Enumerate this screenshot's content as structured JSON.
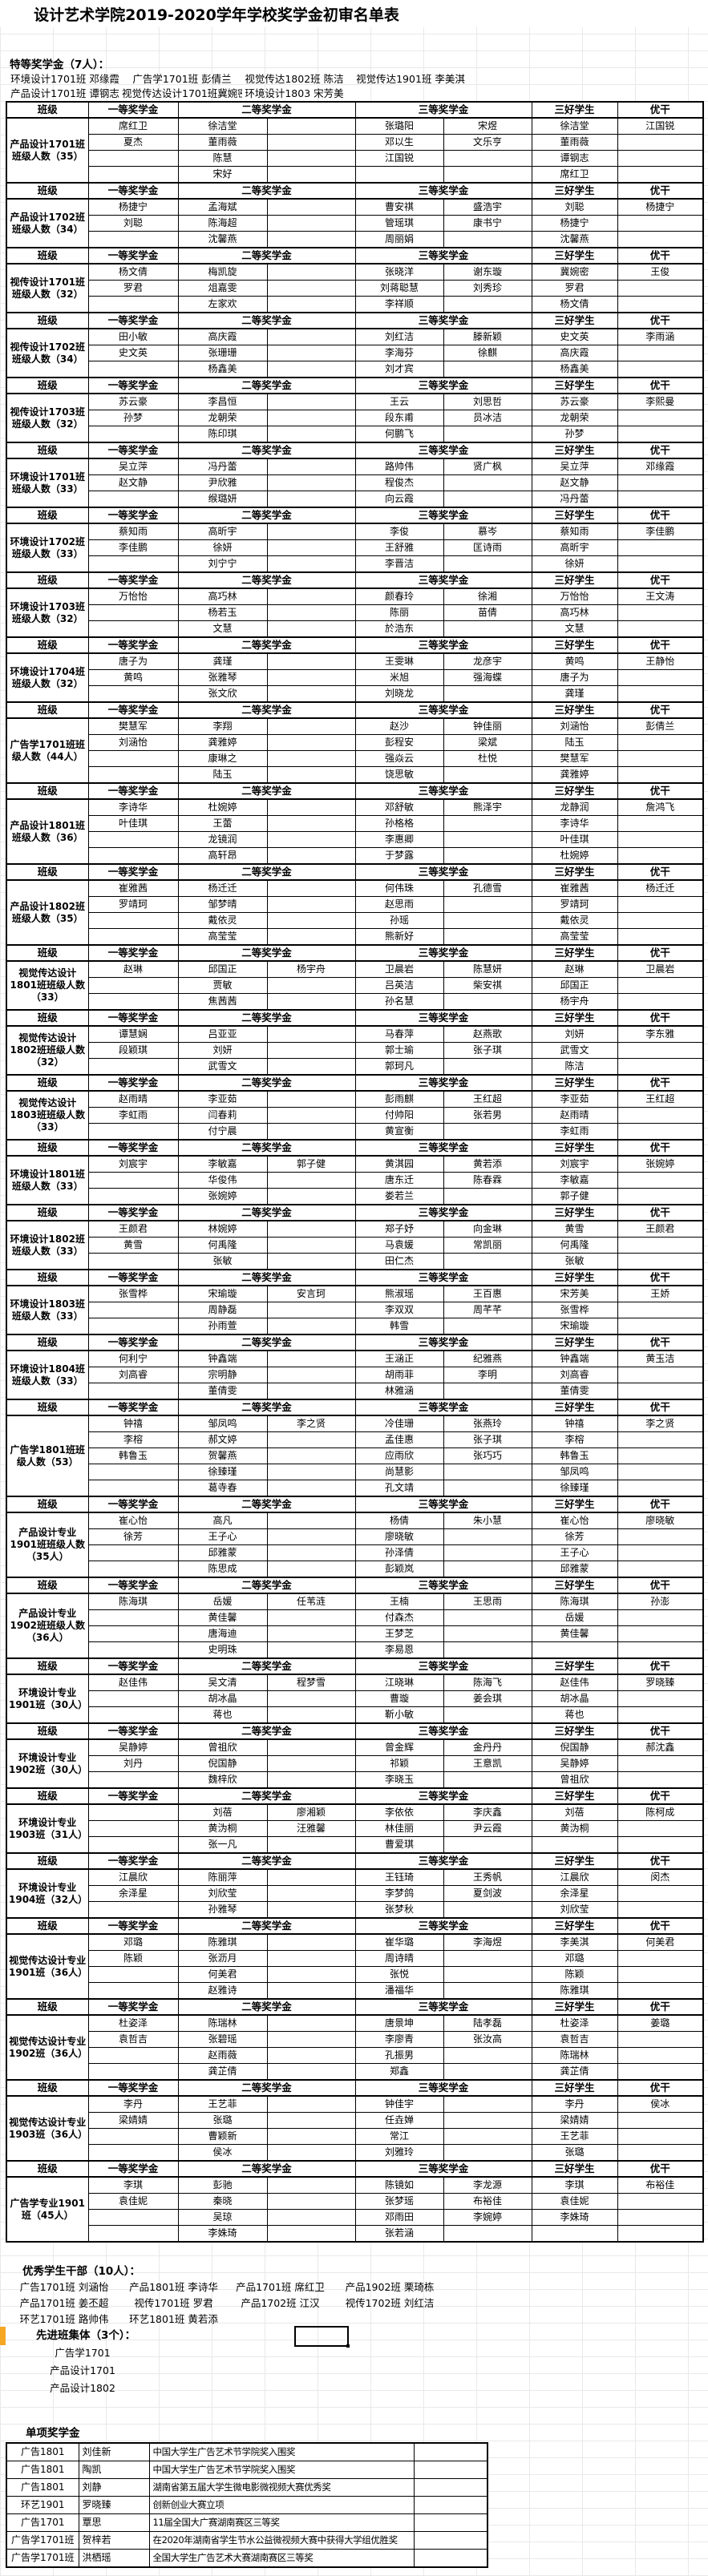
{
  "title": "设计艺术学院2019-2020学年学校奖学金初审名单表",
  "special_award": {
    "heading": "特等奖学金（7人）：",
    "rows": [
      [
        "环境设计1701班 邓缘霞",
        "广告学1701班 彭倩兰",
        "视觉传达1802班 陈洁",
        "视觉传达1901班 李美淇"
      ],
      [
        "产品设计1701班 谭钢志",
        "视觉传达设计1701班冀婉密",
        "环境设计1803  宋芳美",
        ""
      ]
    ]
  },
  "table_header": {
    "class_label": "班级",
    "first": "一等奖学金",
    "second": "二等奖学金",
    "third": "三等奖学金",
    "merit": "三好学生",
    "cadre": "优干"
  },
  "blocks": [
    {
      "label": "产品设计1701班班级人数（35）",
      "rows": [
        [
          "席红卫",
          "徐洁堂",
          "",
          "张璐阳",
          "宋煜",
          "徐洁堂",
          "江国锐"
        ],
        [
          "夏杰",
          "董雨薇",
          "",
          "邓以生",
          "文乐亨",
          "董雨薇",
          ""
        ],
        [
          "",
          "陈慧",
          "",
          "江国锐",
          "",
          "谭钢志",
          ""
        ],
        [
          "",
          "宋好",
          "",
          "",
          "",
          "席红卫",
          ""
        ]
      ]
    },
    {
      "label": "产品设计1702班班级人数（34）",
      "rows": [
        [
          "杨捷宁",
          "孟海斌",
          "",
          "曹安祺",
          "盛浩宇",
          "刘聪",
          "杨捷宁"
        ],
        [
          "刘聪",
          "陈海超",
          "",
          "管瑶琪",
          "康书宁",
          "杨捷宁",
          ""
        ],
        [
          "",
          "沈馨燕",
          "",
          "周丽娟",
          "",
          "沈馨燕",
          ""
        ]
      ]
    },
    {
      "label": "视传设计1701班班级人数（32）",
      "rows": [
        [
          "杨文倩",
          "梅凯旋",
          "",
          "张晓洋",
          "谢东璇",
          "冀婉密",
          "王俊"
        ],
        [
          "罗君",
          "俎嘉雯",
          "",
          "刘蒋聪慧",
          "刘秀珍",
          "罗君",
          ""
        ],
        [
          "",
          "左家欢",
          "",
          "李祥顺",
          "",
          "杨文倩",
          ""
        ]
      ]
    },
    {
      "label": "视传设计1702班班级人数（34）",
      "rows": [
        [
          "田小敏",
          "高庆霞",
          "",
          "刘红洁",
          "滕新颖",
          "史文英",
          "李雨涵"
        ],
        [
          "史文英",
          "张珊珊",
          "",
          "李海芬",
          "徐麒",
          "高庆霞",
          ""
        ],
        [
          "",
          "杨鑫美",
          "",
          "刘才宾",
          "",
          "杨鑫美",
          ""
        ]
      ]
    },
    {
      "label": "视传设计1703班班级人数（32）",
      "rows": [
        [
          "苏云豪",
          "李昌恒",
          "",
          "王云",
          "刘思哲",
          "苏云豪",
          "李熙曼"
        ],
        [
          "孙梦",
          "龙朝荣",
          "",
          "段东甫",
          "员冰洁",
          "龙朝荣",
          ""
        ],
        [
          "",
          "陈印琪",
          "",
          "何鹏飞",
          "",
          "孙梦",
          ""
        ]
      ]
    },
    {
      "label": "环境设计1701班班级人数（33）",
      "rows": [
        [
          "吴立萍",
          "冯丹蕾",
          "",
          "路帅伟",
          "贤广枫",
          "吴立萍",
          "邓缘霞"
        ],
        [
          "赵文静",
          "尹欣雅",
          "",
          "程俊杰",
          "",
          "赵文静",
          ""
        ],
        [
          "",
          "缑璐妍",
          "",
          "向云霞",
          "",
          "冯丹蕾",
          ""
        ]
      ]
    },
    {
      "label": "环境设计1702班班级人数（33）",
      "rows": [
        [
          "蔡知雨",
          "高昕宇",
          "",
          "李俊",
          "慕岑",
          "蔡知雨",
          "李佳鹏"
        ],
        [
          "李佳鹏",
          "徐妍",
          "",
          "王舒雅",
          "匡诗雨",
          "高昕宇",
          ""
        ],
        [
          "",
          "刘宁宁",
          "",
          "李晋洁",
          "",
          "徐妍",
          ""
        ]
      ]
    },
    {
      "label": "环境设计1703班班级人数（32）",
      "rows": [
        [
          "万怡怡",
          "高巧林",
          "",
          "颜春玲",
          "徐湘",
          "万怡怡",
          "王文涛"
        ],
        [
          "",
          "杨若玉",
          "",
          "陈丽",
          "苗倩",
          "高巧林",
          ""
        ],
        [
          "",
          "文慧",
          "",
          "於浩东",
          "",
          "文慧",
          ""
        ]
      ]
    },
    {
      "label": "环境设计1704班班级人数（32）",
      "rows": [
        [
          "唐子为",
          "龚瑾",
          "",
          "王雯琳",
          "龙彦宇",
          "黄鸣",
          "王静怡"
        ],
        [
          "黄鸣",
          "张雅琴",
          "",
          "米旭",
          "强海蝶",
          "唐子为",
          ""
        ],
        [
          "",
          "张文欣",
          "",
          "刘晓龙",
          "",
          "龚瑾",
          ""
        ]
      ]
    },
    {
      "label": "广告学1701班班级人数（44人）",
      "rows": [
        [
          "樊慧军",
          "李翔",
          "",
          "赵沙",
          "钟佳丽",
          "刘涵怡",
          "彭倩兰"
        ],
        [
          "刘涵怡",
          "龚雅婷",
          "",
          "彭程安",
          "梁斌",
          "陆玉",
          ""
        ],
        [
          "",
          "康琳之",
          "",
          "强焱云",
          "杜悦",
          "樊慧军",
          ""
        ],
        [
          "",
          "陆玉",
          "",
          "饶思敏",
          "",
          "龚雅婷",
          ""
        ]
      ]
    },
    {
      "label": "产品设计1801班班级人数（36）",
      "rows": [
        [
          "李诗华",
          "杜婉婷",
          "",
          "邓舒敏",
          "熊泽宇",
          "龙静润",
          "詹鸿飞"
        ],
        [
          "叶佳琪",
          "王蕾",
          "",
          "孙格格",
          "",
          "李诗华",
          ""
        ],
        [
          "",
          "龙镜润",
          "",
          "李惠卿",
          "",
          "叶佳琪",
          ""
        ],
        [
          "",
          "高轩昂",
          "",
          "于梦露",
          "",
          "杜婉婷",
          ""
        ]
      ]
    },
    {
      "label": "产品设计1802班班级人数（35）",
      "rows": [
        [
          "崔雅茜",
          "杨迁迁",
          "",
          "何伟珠",
          "孔德雪",
          "崔雅茜",
          "杨迁迁"
        ],
        [
          "罗靖珂",
          "邹梦晴",
          "",
          "赵思雨",
          "",
          "罗靖珂",
          ""
        ],
        [
          "",
          "戴依灵",
          "",
          "孙瑶",
          "",
          "戴依灵",
          ""
        ],
        [
          "",
          "高莹莹",
          "",
          "熊新好",
          "",
          "高莹莹",
          ""
        ]
      ]
    },
    {
      "label": "视觉传达设计1801班班级人数（33）",
      "rows": [
        [
          "赵琳",
          "邱国正",
          "杨宇舟",
          "卫晨岩",
          "陈慧妍",
          "赵琳",
          "卫晨岩"
        ],
        [
          "",
          "贾敏",
          "",
          "吕英洁",
          "柴安祺",
          "邱国正",
          ""
        ],
        [
          "",
          "焦茜茜",
          "",
          "孙名慧",
          "",
          "杨宇舟",
          ""
        ]
      ]
    },
    {
      "label": "视觉传达设计1802班班级人数（32）",
      "rows": [
        [
          "谭慧娴",
          "吕亚亚",
          "",
          "马春萍",
          "赵燕歌",
          "刘妍",
          "李东雅"
        ],
        [
          "段颖琪",
          "刘妍",
          "",
          "郭士瑜",
          "张子琪",
          "武雪文",
          ""
        ],
        [
          "",
          "武雪文",
          "",
          "郭珂凡",
          "",
          "陈洁",
          ""
        ]
      ]
    },
    {
      "label": "视觉传达设计1803班班级人数（33）",
      "rows": [
        [
          "赵雨晴",
          "李亚茹",
          "",
          "彭雨麒",
          "王红超",
          "李亚茹",
          "王红超"
        ],
        [
          "李虹雨",
          "闫春莉",
          "",
          "付帅阳",
          "张若男",
          "赵雨晴",
          ""
        ],
        [
          "",
          "付宁晨",
          "",
          "黄宣衡",
          "",
          "李虹雨",
          ""
        ]
      ]
    },
    {
      "label": "环境设计1801班班级人数（33）",
      "rows": [
        [
          "刘宸宇",
          "李敏嘉",
          "郭子健",
          "黄淇园",
          "黄若添",
          "刘宸宇",
          "张婉婷"
        ],
        [
          "",
          "华俊伟",
          "",
          "唐东迁",
          "陈春霖",
          "李敏嘉",
          ""
        ],
        [
          "",
          "张婉婷",
          "",
          "娄若兰",
          "",
          "郭子健",
          ""
        ]
      ]
    },
    {
      "label": "环境设计1802班班级人数（33）",
      "rows": [
        [
          "王颜君",
          "林婉婷",
          "",
          "郑子妤",
          "向金琳",
          "黄雪",
          "王颜君"
        ],
        [
          "黄雪",
          "何禹隆",
          "",
          "马袁媛",
          "常凯丽",
          "何禹隆",
          ""
        ],
        [
          "",
          "张敏",
          "",
          "田仁杰",
          "",
          "张敏",
          ""
        ]
      ]
    },
    {
      "label": "环境设计1803班班级人数（33）",
      "rows": [
        [
          "张雪桦",
          "宋瑜璇",
          "安言珂",
          "熊淑瑶",
          "王百惠",
          "宋芳美",
          "王娇"
        ],
        [
          "",
          "周静磊",
          "",
          "李双双",
          "周芊芊",
          "张雪桦",
          ""
        ],
        [
          "",
          "孙雨萱",
          "",
          "韩雪",
          "",
          "宋瑜璇",
          ""
        ]
      ]
    },
    {
      "label": "环境设计1804班班级人数（33）",
      "rows": [
        [
          "何利宁",
          "钟鑫端",
          "",
          "王涵正",
          "纪雅燕",
          "钟鑫端",
          "黄玉洁"
        ],
        [
          "刘高睿",
          "宗明静",
          "",
          "胡雨菲",
          "李明",
          "刘高睿",
          ""
        ],
        [
          "",
          "董倩雯",
          "",
          "林雅涵",
          "",
          "董倩雯",
          ""
        ]
      ]
    },
    {
      "label": "广告学1801班班级人数（53）",
      "rows": [
        [
          "钟禧",
          "邹凤鸣",
          "李之贤",
          "冷佳珊",
          "张燕玲",
          "钟禧",
          "李之贤"
        ],
        [
          "李榕",
          "郝文婷",
          "",
          "孟佳惠",
          "张子琪",
          "李榕",
          ""
        ],
        [
          "韩鲁玉",
          "贺馨燕",
          "",
          "应雨欣",
          "张巧巧",
          "韩鲁玉",
          ""
        ],
        [
          "",
          "徐臻瑾",
          "",
          "尚慧影",
          "",
          "邹凤鸣",
          ""
        ],
        [
          "",
          "葛寺春",
          "",
          "孔文靖",
          "",
          "徐臻瑾",
          ""
        ]
      ]
    },
    {
      "label": "产品设计专业1901班班级人数（35人）",
      "rows": [
        [
          "崔心怡",
          "高凡",
          "",
          "杨倩",
          "朱小慧",
          "崔心怡",
          "廖晓敏"
        ],
        [
          "徐芳",
          "王子心",
          "",
          "廖晓敏",
          "",
          "徐芳",
          ""
        ],
        [
          "",
          "邱雅蒙",
          "",
          "孙泽倩",
          "",
          "王子心",
          ""
        ],
        [
          "",
          "陈思成",
          "",
          "彭颖岚",
          "",
          "邱雅蒙",
          ""
        ]
      ]
    },
    {
      "label": "产品设计专业1902班班级人数（36人）",
      "rows": [
        [
          "陈海琪",
          "岳媛",
          "任苇涟",
          "王楠",
          "王思雨",
          "陈海琪",
          "孙澎"
        ],
        [
          "",
          "黄佳馨",
          "",
          "付森杰",
          "",
          "岳媛",
          ""
        ],
        [
          "",
          "唐海迪",
          "",
          "王梦芝",
          "",
          "黄佳馨",
          ""
        ],
        [
          "",
          "史明珠",
          "",
          "李易恩",
          "",
          "",
          ""
        ]
      ]
    },
    {
      "label": "环境设计专业1901班（30人）",
      "rows": [
        [
          "赵佳伟",
          "吴文清",
          "程梦雪",
          "江晓琳",
          "陈海飞",
          "赵佳伟",
          "罗晓臻"
        ],
        [
          "",
          "胡冰晶",
          "",
          "曹璇",
          "姜会琪",
          "胡冰晶",
          ""
        ],
        [
          "",
          "蒋也",
          "",
          "靳小敏",
          "",
          "蒋也",
          ""
        ]
      ]
    },
    {
      "label": "环境设计专业1902班（30人）",
      "rows": [
        [
          "吴静婷",
          "曾祖欣",
          "",
          "曾金辉",
          "金丹丹",
          "倪国静",
          "郝沈鑫"
        ],
        [
          "刘丹",
          "倪国静",
          "",
          "祁颖",
          "王意凯",
          "吴静婷",
          ""
        ],
        [
          "",
          "魏梓欣",
          "",
          "李晓玉",
          "",
          "曾祖欣",
          ""
        ]
      ]
    },
    {
      "label": "环境设计专业1903班（31人）",
      "rows": [
        [
          "",
          "刘蓓",
          "廖湘颖",
          "李依依",
          "李庆鑫",
          "刘蓓",
          "陈柯成"
        ],
        [
          "",
          "黄沩桐",
          "汪雅馨",
          "林佳丽",
          "尹云霞",
          "黄沩桐",
          ""
        ],
        [
          "",
          "张一凡",
          "",
          "曹爱琪",
          "",
          "",
          ""
        ]
      ]
    },
    {
      "label": "环境设计专业1904班（32人）",
      "rows": [
        [
          "江晨欣",
          "陈丽萍",
          "",
          "王钰琦",
          "王秀帆",
          "江晨欣",
          "闵杰"
        ],
        [
          "余泽星",
          "刘欣莹",
          "",
          "李梦鸽",
          "夏剑波",
          "余泽星",
          ""
        ],
        [
          "",
          "孙雅琴",
          "",
          "张梦秋",
          "",
          "刘欣莹",
          ""
        ]
      ]
    },
    {
      "label": "视觉传达设计专业1901班（36人）",
      "rows": [
        [
          "邓璐",
          "陈雅琪",
          "",
          "崔华璐",
          "李海煜",
          "李美淇",
          "何美君"
        ],
        [
          "陈颖",
          "张沥月",
          "",
          "周诗晴",
          "",
          "邓璐",
          ""
        ],
        [
          "",
          "何美君",
          "",
          "张悦",
          "",
          "陈颖",
          ""
        ],
        [
          "",
          "赵雅诗",
          "",
          "潘福华",
          "",
          "陈雅琪",
          ""
        ]
      ]
    },
    {
      "label": "视觉传达设计专业1902班（36人）",
      "rows": [
        [
          "杜姿泽",
          "陈瑞林",
          "",
          "唐景坤",
          "陆孝磊",
          "杜姿泽",
          "姜璐"
        ],
        [
          "袁哲吉",
          "张碧瑶",
          "",
          "李廖青",
          "张汝高",
          "袁哲吉",
          ""
        ],
        [
          "",
          "赵雨薇",
          "",
          "孔振男",
          "",
          "陈瑞林",
          ""
        ],
        [
          "",
          "龚芷倩",
          "",
          "郑鑫",
          "",
          "龚芷倩",
          ""
        ]
      ]
    },
    {
      "label": "视觉传达设计专业1903班（36人）",
      "rows": [
        [
          "李丹",
          "王艺菲",
          "",
          "钟佳宇",
          "",
          "李丹",
          "侯冰"
        ],
        [
          "梁婧婧",
          "张璐",
          "",
          "任垚婵",
          "",
          "梁婧婧",
          ""
        ],
        [
          "",
          "曹颖新",
          "",
          "常江",
          "",
          "王艺菲",
          ""
        ],
        [
          "",
          "侯冰",
          "",
          "刘雅玲",
          "",
          "张璐",
          ""
        ]
      ]
    },
    {
      "label": "广告学专业1901班（45人）",
      "rows": [
        [
          "李琪",
          "彭驰",
          "",
          "陈镜如",
          "李龙源",
          "李琪",
          "布裕佳"
        ],
        [
          "袁佳妮",
          "秦晓",
          "",
          "张梦瑶",
          "布裕佳",
          "袁佳妮",
          ""
        ],
        [
          "",
          "吴琼",
          "",
          "邓雨田",
          "李婉婷",
          "李姝琦",
          ""
        ],
        [
          "",
          "李姝琦",
          "",
          "张若涵",
          "",
          "",
          ""
        ]
      ]
    }
  ],
  "outstanding_cadres": {
    "heading": "优秀学生干部（10人）：",
    "rows": [
      [
        "广告1701班 刘涵怡",
        "产品1801班 李诗华",
        "产品1701班 席红卫",
        "产品1902班 栗琦栋"
      ],
      [
        "产品1701班 姜丕超",
        "视传1701班 罗君",
        "产品1702班 江汉",
        "视传1702班 刘红洁"
      ],
      [
        "环艺1701班 路帅伟",
        "环艺1801班 黄若添",
        "",
        ""
      ]
    ]
  },
  "advanced_classes": {
    "heading": "先进班集体（3个）：",
    "items": [
      "广告学1701",
      "产品设计1701",
      "产品设计1802"
    ]
  },
  "single_award": {
    "heading": "单项奖学金",
    "rows": [
      [
        "广告1801",
        "刘佳新",
        "中国大学生广告艺术节学院奖入围奖"
      ],
      [
        "广告1801",
        "陶凯",
        "中国大学生广告艺术节学院奖入围奖"
      ],
      [
        "广告1801",
        "刘静",
        "湖南省第五届大学生微电影微视频大赛优秀奖"
      ],
      [
        "环艺1901",
        "罗晓臻",
        "创新创业大赛立项"
      ],
      [
        "广告1701",
        "覃思",
        "11届全国大广赛湖南赛区三等奖"
      ],
      [
        "广告学1701班",
        "贺梓若",
        "在2020年湖南省学生节水公益微视频大赛中获得大学组优胜奖"
      ],
      [
        "广告学1701班",
        "洪栖瑶",
        "全国大学生广告艺术大赛湖南赛区三等奖"
      ]
    ]
  },
  "colors": {
    "selection_border": "#000000",
    "row_marker": "#f5a623",
    "gridline": "#e9e9e9"
  }
}
